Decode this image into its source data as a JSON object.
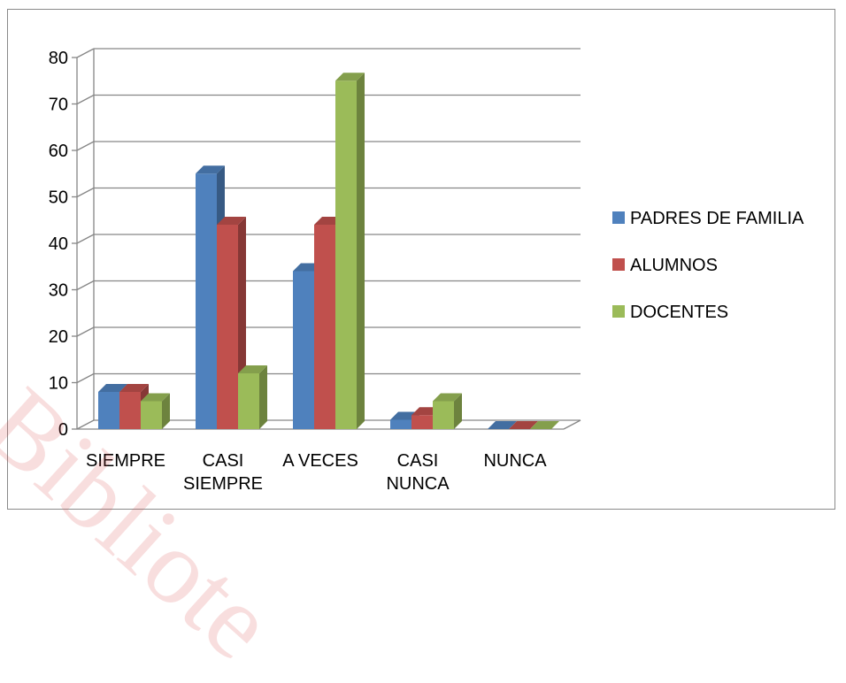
{
  "chart_data": {
    "type": "bar",
    "categories": [
      [
        "SIEMPRE"
      ],
      [
        "CASI",
        "SIEMPRE"
      ],
      [
        "A VECES"
      ],
      [
        "CASI",
        "NUNCA"
      ],
      [
        "NUNCA"
      ]
    ],
    "series": [
      {
        "name": "PADRES DE FAMILIA",
        "values": [
          8,
          55,
          34,
          2,
          0
        ],
        "color": "#4F81BD"
      },
      {
        "name": "ALUMNOS",
        "values": [
          8,
          44,
          44,
          3,
          0
        ],
        "color": "#C0504D"
      },
      {
        "name": "DOCENTES",
        "values": [
          6,
          12,
          75,
          6,
          0
        ],
        "color": "#9BBB59"
      }
    ],
    "yticks": [
      0,
      10,
      20,
      30,
      40,
      50,
      60,
      70,
      80
    ],
    "ylim": [
      0,
      80
    ],
    "grid": true,
    "legend_position": "right",
    "style": "3d-clustered-column"
  },
  "watermark": {
    "text": "Bibliote",
    "color": "#d94a4a"
  }
}
